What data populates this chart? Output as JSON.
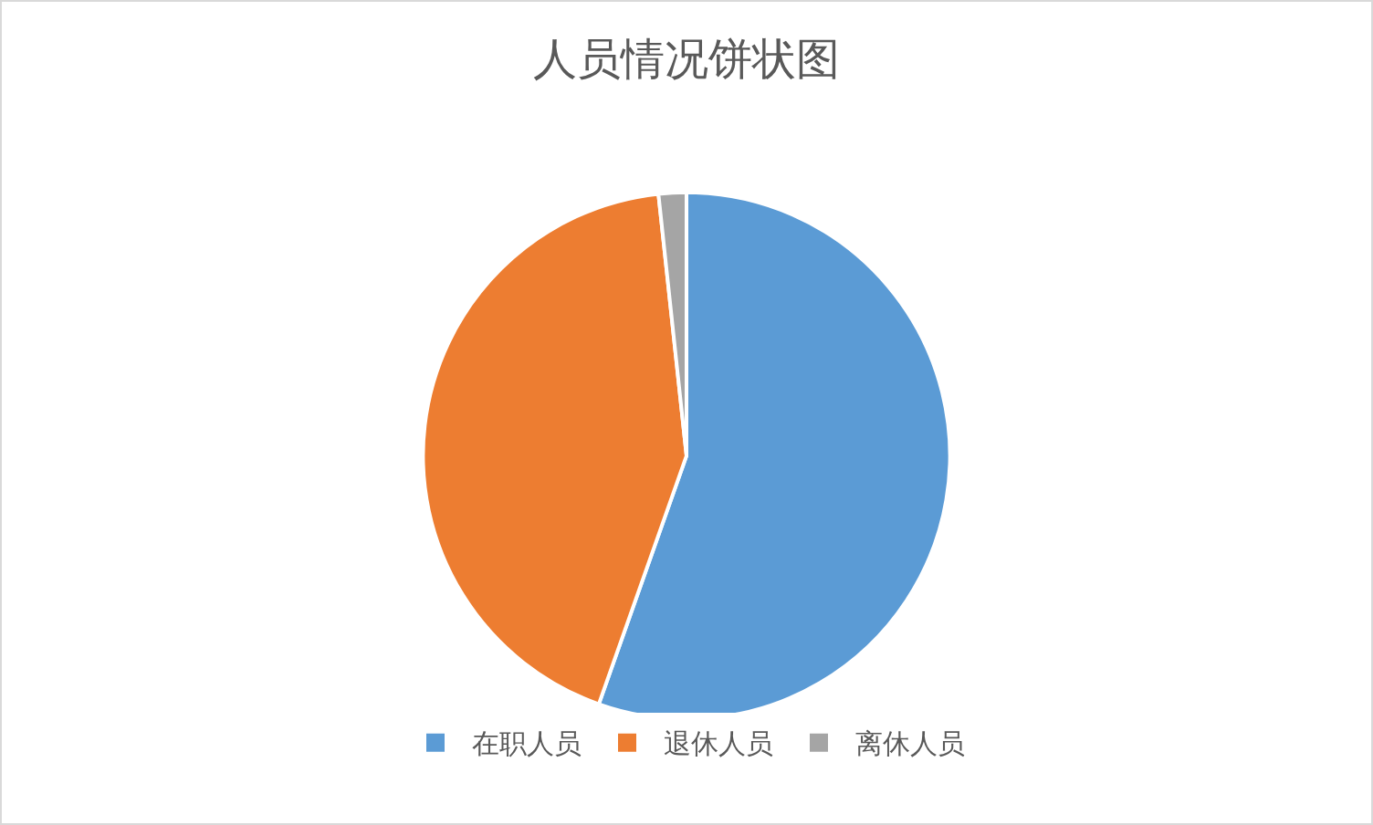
{
  "chart_data": {
    "type": "pie",
    "title": "人员情况饼状图",
    "categories": [
      "在职人员",
      "退休人员",
      "离休人员"
    ],
    "values": [
      55.4,
      42.9,
      1.7
    ],
    "colors": [
      "#5b9bd5",
      "#ed7d31",
      "#a5a5a5"
    ],
    "legend": "bottom"
  }
}
